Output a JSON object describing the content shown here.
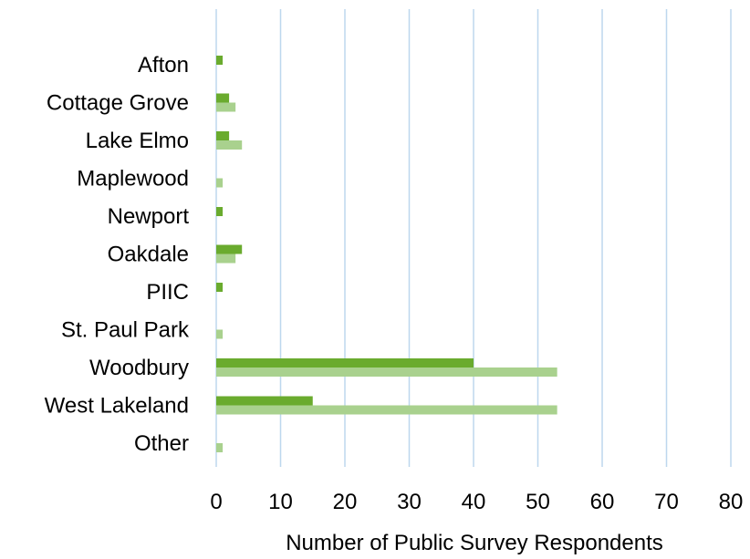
{
  "chart_data": {
    "type": "bar",
    "orientation": "horizontal",
    "title": "",
    "xlabel": "Number of Public Survey Respondents",
    "ylabel": "",
    "xlim": [
      0,
      80
    ],
    "xticks": [
      "0",
      "10",
      "20",
      "30",
      "40",
      "50",
      "60",
      "70",
      "80"
    ],
    "grid": "vertical",
    "legend": "none",
    "categories": [
      "Afton",
      "Cottage Grove",
      "Lake Elmo",
      "Maplewood",
      "Newport",
      "Oakdale",
      "PIIC",
      "St. Paul Park",
      "Woodbury",
      "West Lakeland",
      "Other"
    ],
    "series": [
      {
        "color": "#6AAB2E",
        "values": [
          1,
          2,
          2,
          0,
          1,
          4,
          1,
          0,
          40,
          15,
          0
        ]
      },
      {
        "color": "#A9D18E",
        "values": [
          0,
          3,
          4,
          1,
          0,
          3,
          0,
          1,
          53,
          53,
          1
        ]
      }
    ]
  }
}
